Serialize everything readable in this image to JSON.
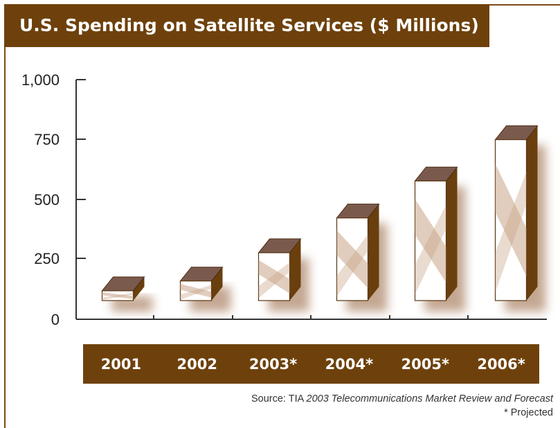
{
  "title": "U.S. Spending on Satellite Services ($ Millions)",
  "source": {
    "prefix": "Source: TIA ",
    "publication": "2003 Telecommunications Market Review and Forecast",
    "footnote": "* Projected"
  },
  "colors": {
    "header": "#6e410c",
    "bar_top": "#7b5a4e",
    "bar_side": "#6a3f0e",
    "bar_front": "#c9a488",
    "shadow": "#b08a6e",
    "axis": "#333333"
  },
  "chart_data": {
    "type": "bar",
    "categories": [
      "2001",
      "2002",
      "2003*",
      "2004*",
      "2005*",
      "2006*"
    ],
    "values": [
      45,
      90,
      220,
      380,
      550,
      740
    ],
    "ylim": [
      0,
      1000
    ],
    "yticks": [
      "0",
      "250",
      "500",
      "750",
      "1,000"
    ],
    "title": "U.S. Spending on Satellite Services ($ Millions)",
    "xlabel": "",
    "ylabel": "",
    "grid": false
  }
}
